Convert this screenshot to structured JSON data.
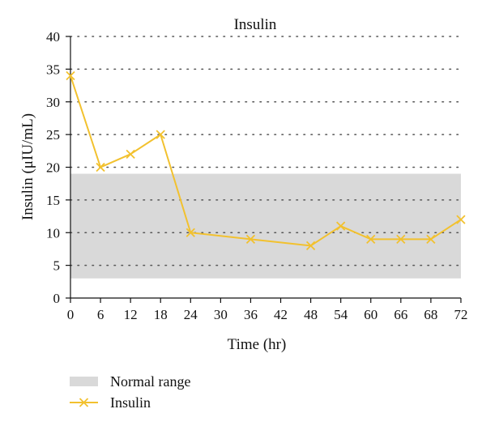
{
  "chart_data": {
    "type": "line",
    "title": "Insulin",
    "xlabel": "Time (hr)",
    "ylabel": "Insulin (μIU/mL)",
    "xlim": [
      0,
      72
    ],
    "ylim": [
      0,
      40
    ],
    "x_ticks": [
      "0",
      "6",
      "12",
      "18",
      "24",
      "30",
      "36",
      "42",
      "48",
      "54",
      "60",
      "66",
      "68",
      "72"
    ],
    "y_ticks": [
      "0",
      "5",
      "10",
      "15",
      "20",
      "25",
      "30",
      "35",
      "40"
    ],
    "grid": "horizontal dotted",
    "normal_range": {
      "name": "Normal range",
      "low": 3,
      "high": 19,
      "color": "#d9d9d9"
    },
    "series": [
      {
        "name": "Insulin",
        "color": "#f2c12e",
        "marker": "x",
        "points": [
          {
            "x": "0",
            "y": 34
          },
          {
            "x": "6",
            "y": 20
          },
          {
            "x": "12",
            "y": 22
          },
          {
            "x": "18",
            "y": 25
          },
          {
            "x": "24",
            "y": 10
          },
          {
            "x": "36",
            "y": 9
          },
          {
            "x": "48",
            "y": 8
          },
          {
            "x": "54",
            "y": 11
          },
          {
            "x": "60",
            "y": 9
          },
          {
            "x": "66",
            "y": 9
          },
          {
            "x": "68",
            "y": 9
          },
          {
            "x": "72",
            "y": 12
          }
        ]
      }
    ],
    "legend": {
      "position": "bottom-left",
      "items": [
        {
          "label": "Normal range",
          "kind": "band",
          "color": "#d9d9d9"
        },
        {
          "label": "Insulin",
          "kind": "line",
          "color": "#f2c12e"
        }
      ]
    }
  }
}
